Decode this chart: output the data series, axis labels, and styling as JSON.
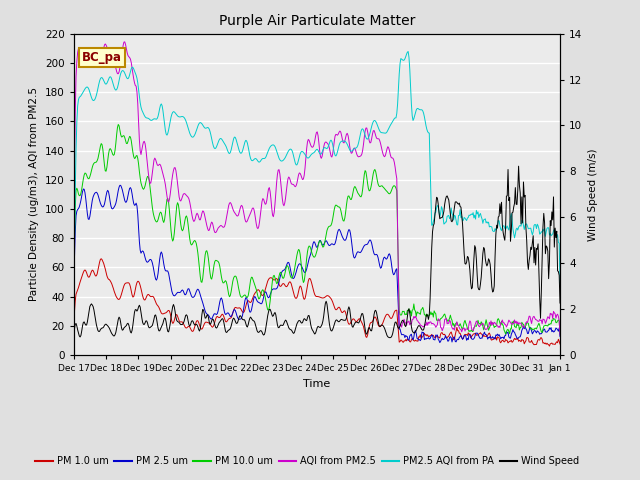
{
  "title": "Purple Air Particulate Matter",
  "xlabel": "Time",
  "ylabel_left": "Particle Density (ug/m3), AQI from PM2.5",
  "ylabel_right": "Wind Speed (m/s)",
  "ylim_left": [
    0,
    220
  ],
  "ylim_right": [
    0,
    14
  ],
  "date_labels": [
    "Dec 17",
    "Dec 18",
    "Dec 19",
    "Dec 20",
    "Dec 21",
    "Dec 22",
    "Dec 23",
    "Dec 24",
    "Dec 25",
    "Dec 26",
    "Dec 27",
    "Dec 28",
    "Dec 29",
    "Dec 30",
    "Dec 31",
    "Jan 1"
  ],
  "annotation": "BC_pa",
  "background_color": "#e0e0e0",
  "plot_bg_color": "#ebebeb",
  "series_colors": {
    "pm1": "#cc0000",
    "pm25": "#0000cc",
    "pm10": "#00cc00",
    "aqi_pm25": "#cc00cc",
    "aqi_pa": "#00cccc",
    "wind": "#000000"
  },
  "legend_labels": [
    "PM 1.0 um",
    "PM 2.5 um",
    "PM 10.0 um",
    "AQI from PM2.5",
    "PM2.5 AQI from PA",
    "Wind Speed"
  ],
  "yticks_left": [
    0,
    20,
    40,
    60,
    80,
    100,
    120,
    140,
    160,
    180,
    200,
    220
  ],
  "yticks_right": [
    0,
    2,
    4,
    6,
    8,
    10,
    12,
    14
  ]
}
